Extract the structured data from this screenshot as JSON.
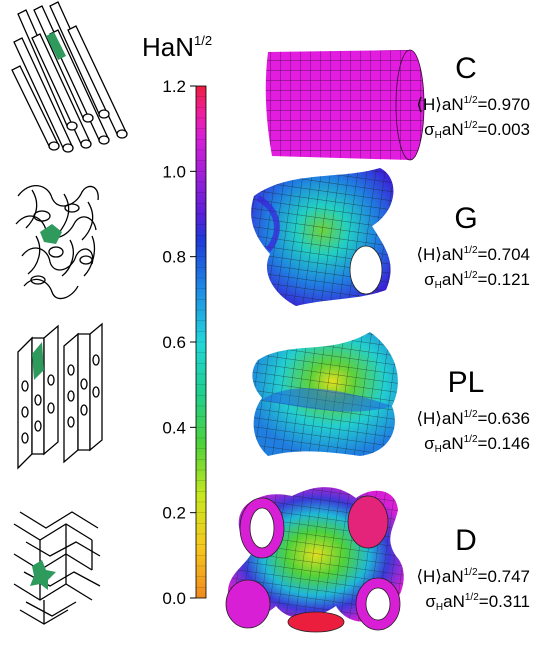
{
  "colorbar": {
    "title": "HaN",
    "title_exponent": "1/2",
    "ticks": [
      "1.2",
      "1.0",
      "0.8",
      "0.6",
      "0.4",
      "0.2",
      "0.0"
    ],
    "tick_values": [
      1.2,
      1.0,
      0.8,
      0.6,
      0.4,
      0.2,
      0.0
    ],
    "range": [
      0.0,
      1.2
    ]
  },
  "phases": [
    {
      "name": "C",
      "mean_label": "⟨H⟩aN",
      "mean_exp": "1/2",
      "mean_value": "=0.970",
      "std_label": "σ",
      "std_sub": "H",
      "std_label2": "aN",
      "std_exp": "1/2",
      "std_value": "=0.003"
    },
    {
      "name": "G",
      "mean_label": "⟨H⟩aN",
      "mean_exp": "1/2",
      "mean_value": "=0.704",
      "std_label": "σ",
      "std_sub": "H",
      "std_label2": "aN",
      "std_exp": "1/2",
      "std_value": "=0.121"
    },
    {
      "name": "PL",
      "mean_label": "⟨H⟩aN",
      "mean_exp": "1/2",
      "mean_value": "=0.636",
      "std_label": "σ",
      "std_sub": "H",
      "std_label2": "aN",
      "std_exp": "1/2",
      "std_value": "=0.146"
    },
    {
      "name": "D",
      "mean_label": "⟨H⟩aN",
      "mean_exp": "1/2",
      "mean_value": "=0.747",
      "std_label": "σ",
      "std_sub": "H",
      "std_label2": "aN",
      "std_exp": "1/2",
      "std_value": "=0.311"
    }
  ],
  "colors": {
    "highlight": "#2e9a5c",
    "outline": "#000000",
    "mesh_line": "#1a1a1a",
    "C_surface": "#e21de0",
    "colormap": [
      "#f08a1e",
      "#f7c81d",
      "#c8e81e",
      "#4fd23b",
      "#1fcf8e",
      "#22d6d9",
      "#1f8de6",
      "#1f3ad8",
      "#5a1fd8",
      "#a21fd8",
      "#d81fd6",
      "#f01e9a",
      "#ec1e3e"
    ]
  }
}
